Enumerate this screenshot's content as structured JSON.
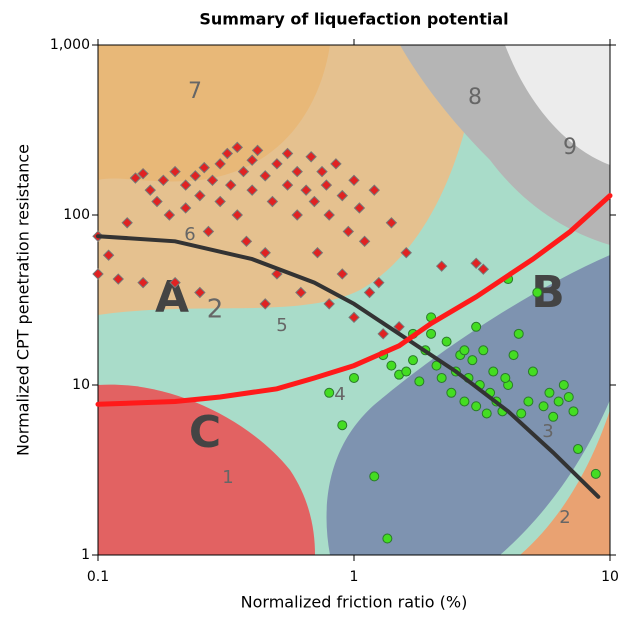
{
  "chart_data": {
    "type": "scatter",
    "title": "Summary of liquefaction potential",
    "x_label": "Normalized friction ratio (%)",
    "y_label": "Normalized CPT penetration resistance",
    "log_x": true,
    "log_y": true,
    "xlim": [
      0.1,
      10
    ],
    "ylim": [
      1,
      1000
    ],
    "xticks": [
      0.1,
      1,
      10
    ],
    "yticks": [
      1,
      10,
      100,
      {
        "value": 1000,
        "label": "1,000"
      }
    ],
    "annotations": [
      "7",
      "8",
      "9",
      "6",
      "5",
      "4",
      "3",
      "2",
      "1",
      "A",
      "2",
      "B",
      "C"
    ],
    "series": [
      {
        "marker": "diamond",
        "color": "#e02222",
        "x": [
          0.1,
          0.1,
          0.11,
          0.12,
          0.13,
          0.14,
          0.15,
          0.16,
          0.17,
          0.18,
          0.19,
          0.2,
          0.2,
          0.22,
          0.22,
          0.24,
          0.25,
          0.26,
          0.27,
          0.28,
          0.3,
          0.3,
          0.32,
          0.33,
          0.35,
          0.35,
          0.37,
          0.38,
          0.4,
          0.4,
          0.42,
          0.45,
          0.45,
          0.48,
          0.5,
          0.5,
          0.55,
          0.55,
          0.6,
          0.6,
          0.62,
          0.65,
          0.68,
          0.7,
          0.72,
          0.75,
          0.78,
          0.8,
          0.8,
          0.85,
          0.9,
          0.95,
          1.0,
          1.0,
          1.05,
          1.1,
          1.2,
          1.25,
          1.3,
          1.4,
          1.5,
          1.6,
          2.2,
          3.0,
          3.2,
          0.15,
          0.25,
          0.45,
          0.9,
          1.15
        ],
        "values": [
          75,
          45,
          58,
          42,
          90,
          165,
          175,
          140,
          120,
          160,
          100,
          180,
          40,
          150,
          110,
          170,
          130,
          190,
          80,
          160,
          200,
          120,
          230,
          150,
          250,
          100,
          180,
          70,
          210,
          140,
          240,
          170,
          60,
          120,
          200,
          45,
          150,
          230,
          100,
          180,
          35,
          140,
          220,
          120,
          60,
          180,
          150,
          100,
          30,
          200,
          130,
          80,
          160,
          25,
          110,
          70,
          140,
          40,
          20,
          90,
          22,
          60,
          50,
          52,
          48,
          40,
          35,
          30,
          45,
          35
        ]
      },
      {
        "marker": "circle",
        "color": "#44dd22",
        "x": [
          1.35,
          1.2,
          0.8,
          0.9,
          1.0,
          1.3,
          1.4,
          1.5,
          1.6,
          1.7,
          1.8,
          1.9,
          2.0,
          2.1,
          2.2,
          2.3,
          2.4,
          2.5,
          2.6,
          2.7,
          2.8,
          2.9,
          3.0,
          3.1,
          3.2,
          3.3,
          3.4,
          3.5,
          3.6,
          3.8,
          4.0,
          4.2,
          4.4,
          4.5,
          4.8,
          5.0,
          5.2,
          5.5,
          5.8,
          6.0,
          6.3,
          6.6,
          6.9,
          7.2,
          7.5,
          8.8,
          4.0,
          3.0,
          2.0,
          3.9,
          2.7,
          1.7
        ],
        "values": [
          1.25,
          2.9,
          9,
          5.8,
          11,
          15,
          13,
          11.5,
          12,
          14,
          10.5,
          16,
          20,
          13,
          11,
          18,
          9,
          12,
          15,
          8,
          11,
          14,
          7.5,
          10,
          16,
          6.8,
          9,
          12,
          8,
          7,
          10,
          15,
          20,
          6.8,
          8,
          12,
          35,
          7.5,
          9,
          6.5,
          8,
          10,
          8.5,
          7,
          4.2,
          3,
          42,
          22,
          25,
          11,
          16,
          20
        ]
      },
      {
        "marker": "line",
        "color": "#333333",
        "x": [
          0.1,
          0.2,
          0.4,
          0.7,
          1,
          1.5,
          2.5,
          4,
          6,
          9
        ],
        "values": [
          75,
          70,
          55,
          40,
          30,
          20,
          12,
          7,
          4,
          2.2
        ]
      },
      {
        "marker": "line",
        "color": "#ff1a1a",
        "x": [
          0.1,
          0.2,
          0.3,
          0.5,
          0.7,
          1,
          1.5,
          2,
          3,
          5,
          7,
          10
        ],
        "values": [
          7.7,
          8,
          8.5,
          9.5,
          11,
          13,
          17,
          23,
          33,
          55,
          80,
          130
        ]
      }
    ]
  }
}
